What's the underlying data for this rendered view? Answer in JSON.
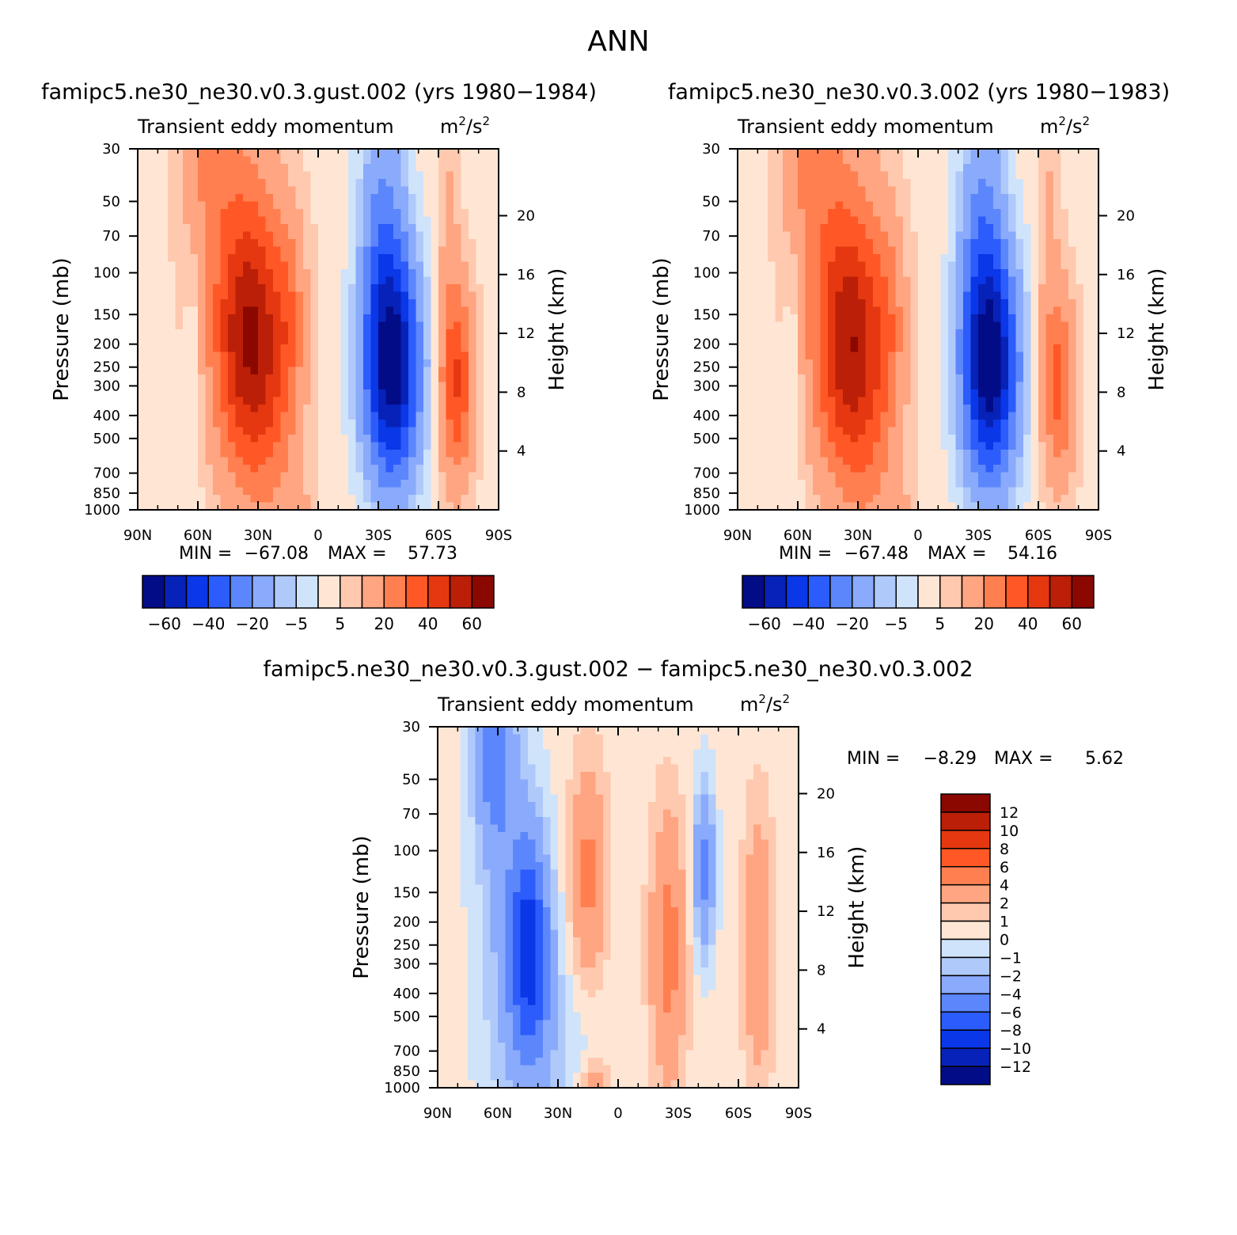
{
  "page": {
    "title": "ANN"
  },
  "colors": {
    "pos": [
      "#ffe6d4",
      "#ffc9af",
      "#ffa581",
      "#ff7f50",
      "#ff5826",
      "#e53810",
      "#bb1f07",
      "#8a0800"
    ],
    "neg": [
      "#cfe3fb",
      "#b0c9fb",
      "#8aaafb",
      "#5c86fb",
      "#2c5cfb",
      "#0a37e8",
      "#0722b8",
      "#020c86"
    ]
  },
  "chart_data": [
    {
      "id": "panel-1",
      "type": "heatmap",
      "title": "famipc5.ne30_ne30.v0.3.gust.002 (yrs 1980−1984)",
      "variable": "Transient eddy momentum",
      "units_base": "m",
      "units_mid": "/s",
      "units_sup": "2",
      "ylabel": "Pressure (mb)",
      "ylabel2": "Height (km)",
      "x_ticks": [
        "90N",
        "60N",
        "30N",
        "0",
        "30S",
        "60S",
        "90S"
      ],
      "y_ticks": [
        "30",
        "50",
        "70",
        "100",
        "150",
        "200",
        "250",
        "300",
        "400",
        "500",
        "700",
        "850",
        "1000"
      ],
      "y2_ticks": [
        "20",
        "16",
        "12",
        "8",
        "4"
      ],
      "stats": {
        "min_label": "MIN =",
        "min_value": "−67.08",
        "max_label": "MAX =",
        "max_value": "57.73"
      },
      "colorbar_labels": [
        "−60",
        "−40",
        "−20",
        "−5",
        "5",
        "20",
        "40",
        "60"
      ],
      "colorbar_levels": [
        -60,
        -50,
        -40,
        -30,
        -20,
        -10,
        -5,
        0,
        5,
        10,
        20,
        30,
        40,
        50,
        60
      ],
      "field": [
        {
          "lat": 34,
          "p": 200,
          "amp": 55,
          "wlat": 13,
          "wlog": 0.3
        },
        {
          "lat": 14,
          "p": 150,
          "amp": 12,
          "wlat": 5,
          "wlog": 0.2
        },
        {
          "lat": 55,
          "p": 30,
          "amp": 14,
          "wlat": 10,
          "wlog": 0.2
        },
        {
          "lat": 40,
          "p": 60,
          "amp": 10,
          "wlat": 16,
          "wlog": 0.3
        },
        {
          "lat": 62,
          "p": 250,
          "amp": -8,
          "wlat": 3,
          "wlog": 0.25
        },
        {
          "lat": -37,
          "p": 250,
          "amp": -67,
          "wlat": 10,
          "wlog": 0.27
        },
        {
          "lat": -32,
          "p": 60,
          "amp": -20,
          "wlat": 8,
          "wlog": 0.35
        },
        {
          "lat": -69,
          "p": 290,
          "amp": 38,
          "wlat": 6,
          "wlog": 0.22
        },
        {
          "lat": -65,
          "p": 60,
          "amp": 8,
          "wlat": 4,
          "wlog": 0.3
        },
        {
          "lat": 22,
          "p": 600,
          "amp": 8,
          "wlat": 10,
          "wlog": 0.3
        },
        {
          "lat": 10,
          "p": 950,
          "amp": 9,
          "wlat": 4,
          "wlog": 0.05
        }
      ],
      "background": 3
    },
    {
      "id": "panel-2",
      "type": "heatmap",
      "title": "famipc5.ne30_ne30.v0.3.002 (yrs 1980−1983)",
      "variable": "Transient eddy momentum",
      "units_base": "m",
      "units_mid": "/s",
      "units_sup": "2",
      "ylabel": "Pressure (mb)",
      "ylabel2": "Height (km)",
      "x_ticks": [
        "90N",
        "60N",
        "30N",
        "0",
        "30S",
        "60S",
        "90S"
      ],
      "y_ticks": [
        "30",
        "50",
        "70",
        "100",
        "150",
        "200",
        "250",
        "300",
        "400",
        "500",
        "700",
        "850",
        "1000"
      ],
      "y2_ticks": [
        "20",
        "16",
        "12",
        "8",
        "4"
      ],
      "stats": {
        "min_label": "MIN =",
        "min_value": "−67.48",
        "max_label": "MAX =",
        "max_value": "54.16"
      },
      "colorbar_labels": [
        "−60",
        "−40",
        "−20",
        "−5",
        "5",
        "20",
        "40",
        "60"
      ],
      "colorbar_levels": [
        -60,
        -50,
        -40,
        -30,
        -20,
        -10,
        -5,
        0,
        5,
        10,
        20,
        30,
        40,
        50,
        60
      ],
      "field": [
        {
          "lat": 34,
          "p": 210,
          "amp": 52,
          "wlat": 13,
          "wlog": 0.3
        },
        {
          "lat": 14,
          "p": 150,
          "amp": 11,
          "wlat": 5,
          "wlog": 0.2
        },
        {
          "lat": 55,
          "p": 30,
          "amp": 15,
          "wlat": 10,
          "wlog": 0.2
        },
        {
          "lat": 40,
          "p": 60,
          "amp": 10,
          "wlat": 16,
          "wlog": 0.3
        },
        {
          "lat": 62,
          "p": 280,
          "amp": -8,
          "wlat": 3,
          "wlog": 0.25
        },
        {
          "lat": -36,
          "p": 250,
          "amp": -67,
          "wlat": 10,
          "wlog": 0.27
        },
        {
          "lat": -32,
          "p": 60,
          "amp": -20,
          "wlat": 8,
          "wlog": 0.35
        },
        {
          "lat": -70,
          "p": 300,
          "amp": 30,
          "wlat": 6,
          "wlog": 0.22
        },
        {
          "lat": -65,
          "p": 60,
          "amp": 8,
          "wlat": 4,
          "wlog": 0.3
        },
        {
          "lat": 22,
          "p": 600,
          "amp": 8,
          "wlat": 10,
          "wlog": 0.3
        },
        {
          "lat": 10,
          "p": 950,
          "amp": 9,
          "wlat": 4,
          "wlog": 0.05
        }
      ],
      "background": 3
    },
    {
      "id": "panel-3",
      "type": "heatmap",
      "title": "famipc5.ne30_ne30.v0.3.gust.002 − famipc5.ne30_ne30.v0.3.002",
      "variable": "Transient eddy momentum",
      "units_base": "m",
      "units_mid": "/s",
      "units_sup": "2",
      "ylabel": "Pressure (mb)",
      "ylabel2": "Height (km)",
      "x_ticks": [
        "90N",
        "60N",
        "30N",
        "0",
        "30S",
        "60S",
        "90S"
      ],
      "y_ticks": [
        "30",
        "50",
        "70",
        "100",
        "150",
        "200",
        "250",
        "300",
        "400",
        "500",
        "700",
        "850",
        "1000"
      ],
      "y2_ticks": [
        "20",
        "16",
        "12",
        "8",
        "4"
      ],
      "stats": {
        "min_label": "MIN =",
        "min_value": "−8.29",
        "max_label": "MAX =",
        "max_value": "5.62"
      },
      "colorbar_labels": [
        "12",
        "10",
        "8",
        "6",
        "4",
        "2",
        "1",
        "0",
        "−1",
        "−2",
        "−4",
        "−6",
        "−8",
        "−10",
        "−12"
      ],
      "colorbar_levels": [
        -12,
        -10,
        -8,
        -6,
        -4,
        -2,
        -1,
        0,
        1,
        2,
        4,
        6,
        8,
        10,
        12
      ],
      "field": [
        {
          "lat": 44,
          "p": 260,
          "amp": -8.3,
          "wlat": 7,
          "wlog": 0.25
        },
        {
          "lat": 62,
          "p": 40,
          "amp": -5,
          "wlat": 7,
          "wlog": 0.2
        },
        {
          "lat": 55,
          "p": 200,
          "amp": -2.5,
          "wlat": 12,
          "wlog": 0.5
        },
        {
          "lat": 15,
          "p": 130,
          "amp": 4.2,
          "wlat": 6,
          "wlog": 0.25
        },
        {
          "lat": -25,
          "p": 260,
          "amp": 4.5,
          "wlat": 6,
          "wlog": 0.3
        },
        {
          "lat": -43,
          "p": 120,
          "amp": -5,
          "wlat": 4,
          "wlog": 0.2
        },
        {
          "lat": -70,
          "p": 250,
          "amp": 3.5,
          "wlat": 5,
          "wlog": 0.3
        },
        {
          "lat": 12,
          "p": 950,
          "amp": 3,
          "wlat": 5,
          "wlog": 0.05
        },
        {
          "lat": 30,
          "p": 700,
          "amp": -1.5,
          "wlat": 15,
          "wlog": 0.25
        }
      ],
      "background": 0.5
    }
  ]
}
